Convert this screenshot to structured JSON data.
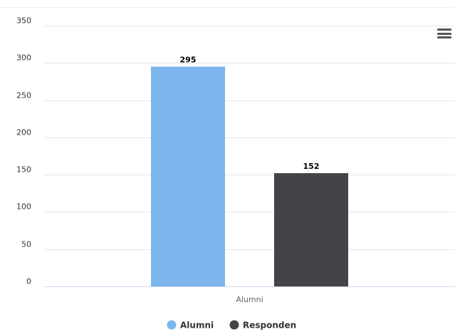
{
  "chart_data": {
    "type": "bar",
    "categories": [
      "Alumni"
    ],
    "series": [
      {
        "name": "Alumni",
        "values": [
          295
        ],
        "color": "#7cb5ec"
      },
      {
        "name": "Responden",
        "values": [
          152
        ],
        "color": "#434348"
      }
    ],
    "yticks": [
      "0",
      "50",
      "100",
      "150",
      "200",
      "250",
      "300",
      "350"
    ],
    "ylim": [
      0,
      350
    ],
    "data_labels": [
      "295",
      "152"
    ],
    "grid": true,
    "legend_position": "bottom-center",
    "title": "",
    "xlabel": "",
    "ylabel": ""
  },
  "menu": {
    "icon": "hamburger-menu-icon"
  }
}
